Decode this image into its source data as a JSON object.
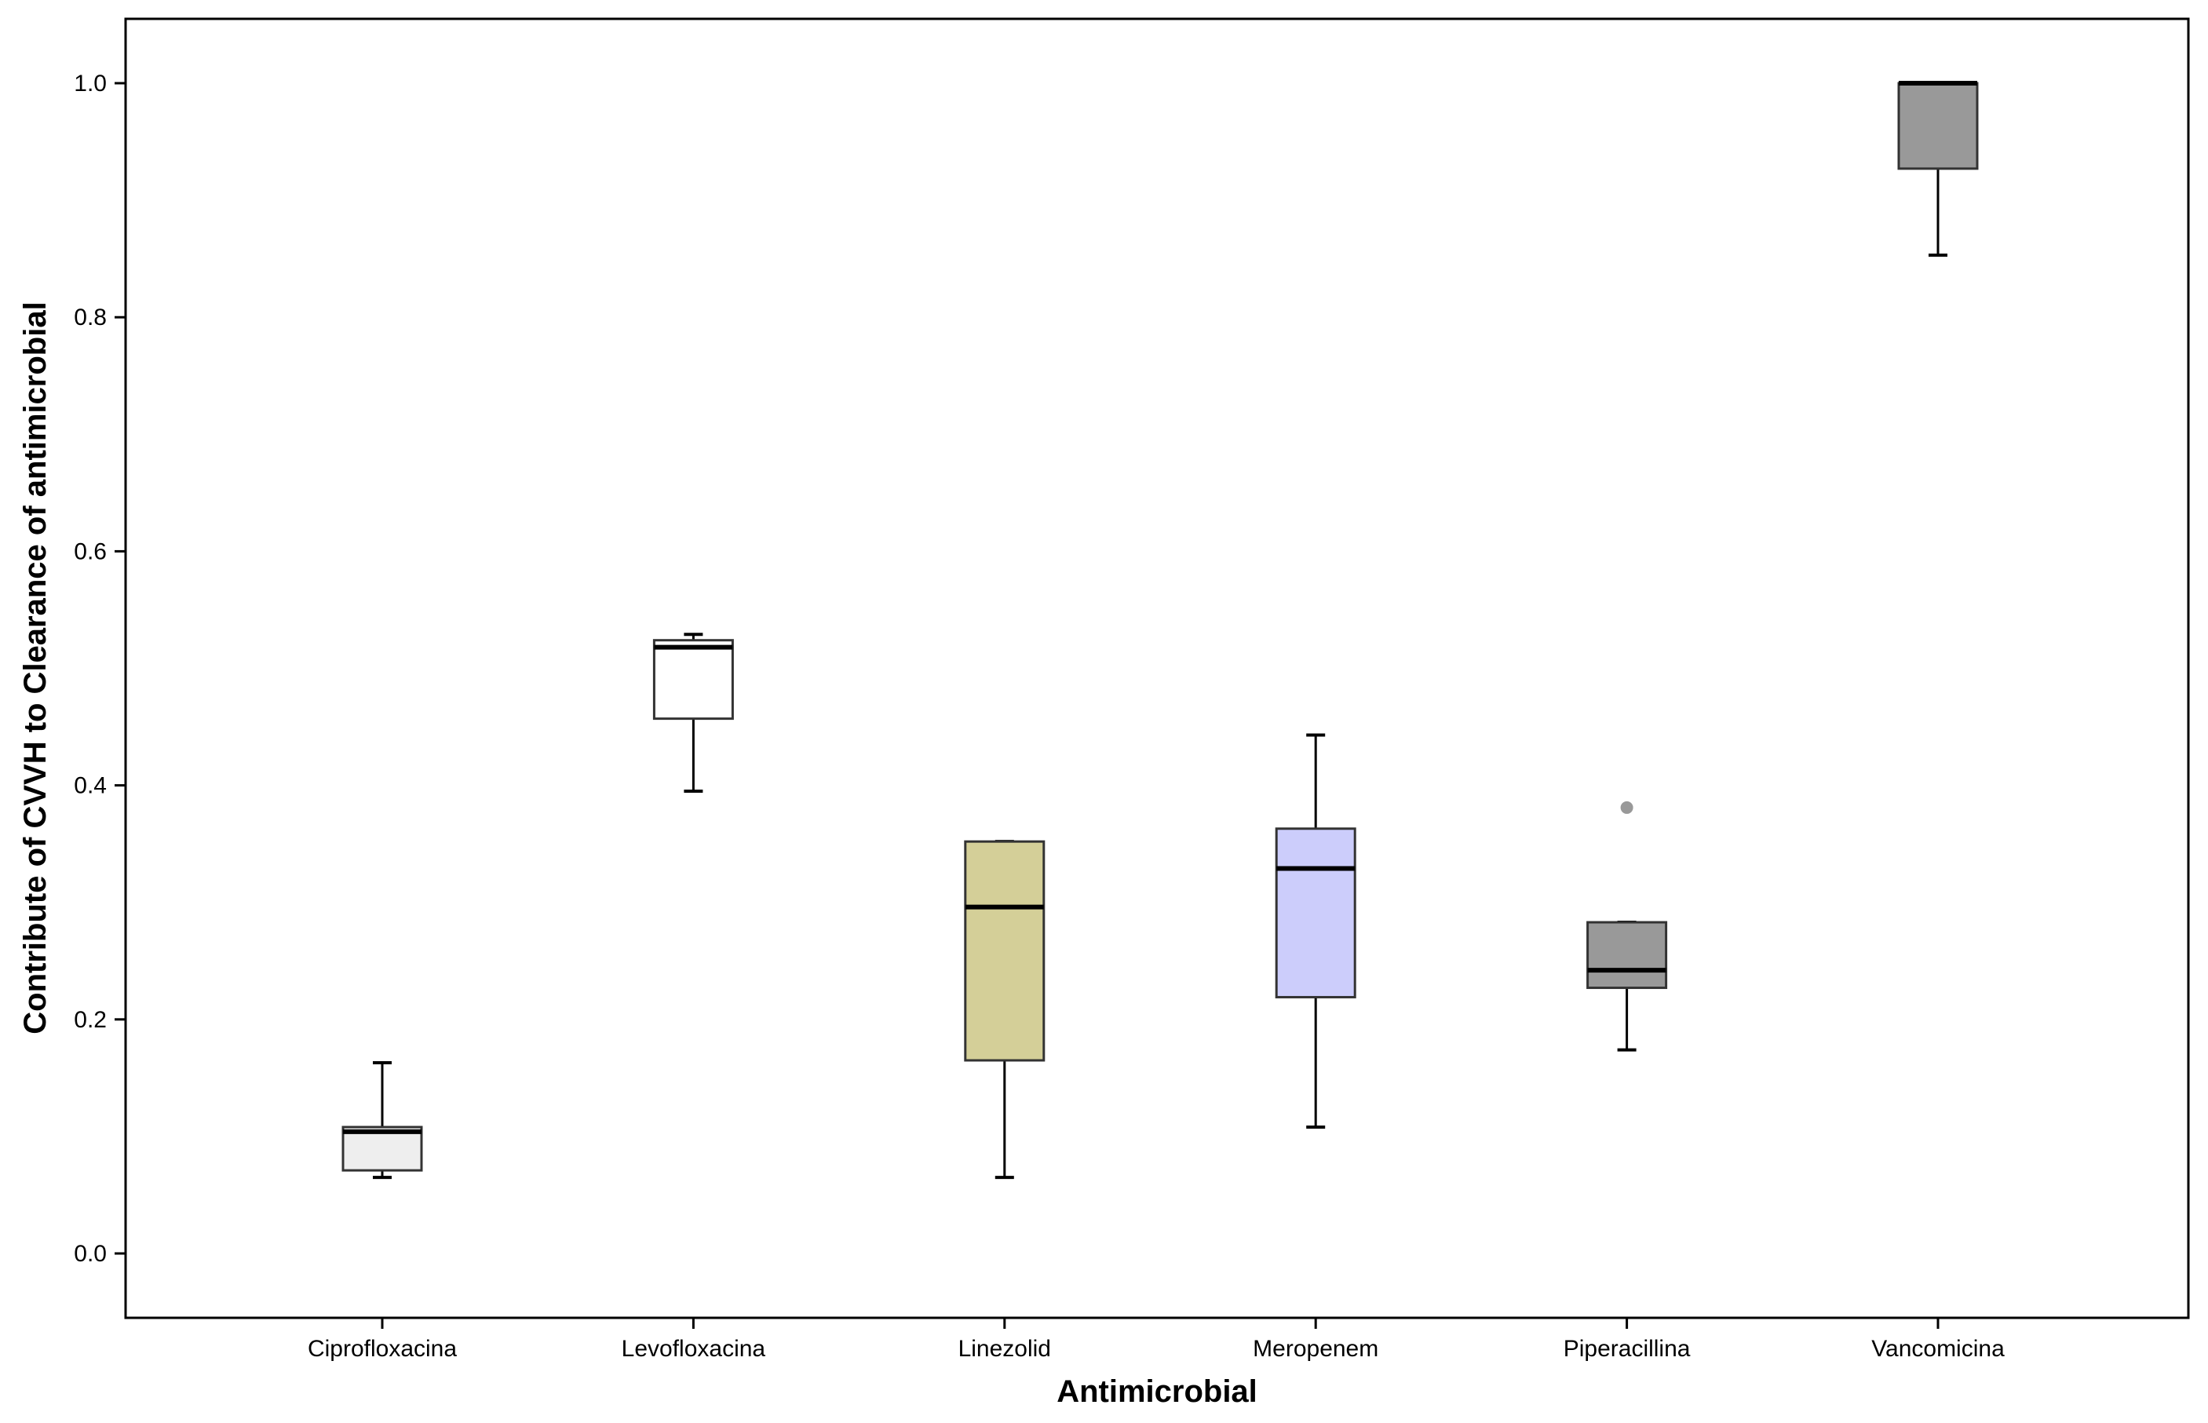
{
  "chart_data": {
    "type": "boxplot",
    "title": "",
    "xlabel": "Antimicrobial",
    "ylabel": "Contribute of CVVH to Clearance of antimicrobial",
    "ylim": [
      -0.055,
      1.055
    ],
    "y_ticks": [
      "0.0",
      "0.2",
      "0.4",
      "0.6",
      "0.8",
      "1.0"
    ],
    "y_tick_values": [
      0.0,
      0.2,
      0.4,
      0.6,
      0.8,
      1.0
    ],
    "grid": false,
    "categories": [
      "Ciprofloxacina",
      "Levofloxacina",
      "Linezolid",
      "Meropenem",
      "Piperacillina",
      "Vancomicina"
    ],
    "boxes": [
      {
        "name": "Ciprofloxacina",
        "whisker_low": 0.065,
        "q1": 0.071,
        "median": 0.104,
        "q3": 0.108,
        "whisker_high": 0.163,
        "outliers": [],
        "color": "#eeeeee"
      },
      {
        "name": "Levofloxacina",
        "whisker_low": 0.395,
        "q1": 0.457,
        "median": 0.518,
        "q3": 0.524,
        "whisker_high": 0.529,
        "outliers": [],
        "color": "#ffffff"
      },
      {
        "name": "Linezolid",
        "whisker_low": 0.065,
        "q1": 0.165,
        "median": 0.296,
        "q3": 0.352,
        "whisker_high": 0.352,
        "outliers": [],
        "color": "#d4cf98"
      },
      {
        "name": "Meropenem",
        "whisker_low": 0.108,
        "q1": 0.219,
        "median": 0.329,
        "q3": 0.363,
        "whisker_high": 0.443,
        "outliers": [],
        "color": "#cccdfb"
      },
      {
        "name": "Piperacillina",
        "whisker_low": 0.174,
        "q1": 0.227,
        "median": 0.242,
        "q3": 0.283,
        "whisker_high": 0.283,
        "outliers": [
          0.381
        ],
        "color": "#999999"
      },
      {
        "name": "Vancomicina",
        "whisker_low": 0.853,
        "q1": 0.927,
        "median": 1.0,
        "q3": 1.0,
        "whisker_high": 1.0,
        "outliers": [],
        "color": "#999999"
      }
    ],
    "outlier_color": "#999999"
  }
}
